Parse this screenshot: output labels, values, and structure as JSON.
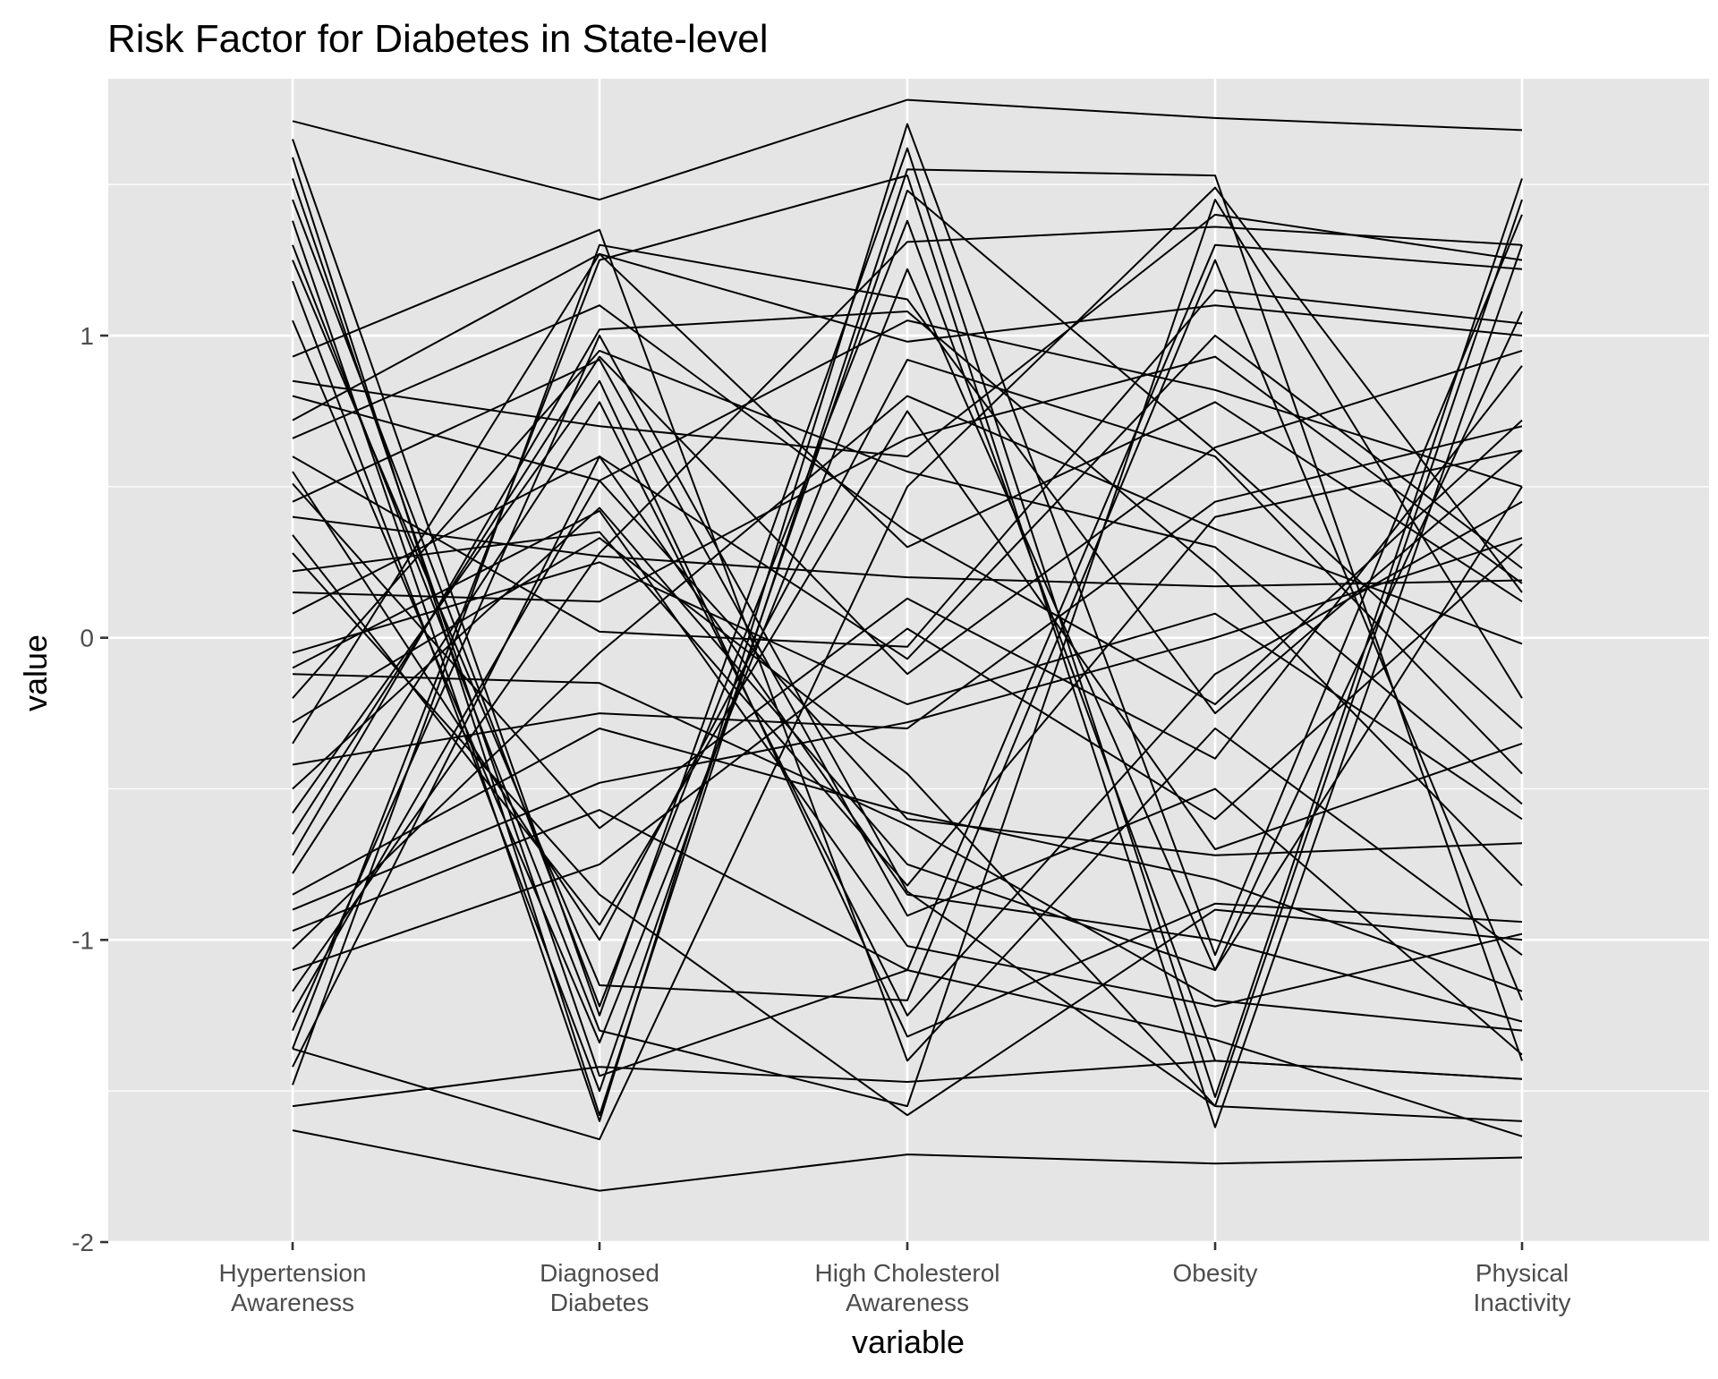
{
  "chart_data": {
    "type": "line",
    "subtype": "parallel-coordinates",
    "title": "Risk Factor for Diabetes in State-level",
    "xlabel": "variable",
    "ylabel": "value",
    "ylim": [
      -2.0,
      1.85
    ],
    "y_ticks": [
      -2,
      -1,
      0,
      1
    ],
    "y_tick_labels": [
      "-2",
      "-1",
      "0",
      "1"
    ],
    "categories": [
      [
        "Hypertension",
        "Awareness"
      ],
      [
        "Diagnosed",
        "Diabetes"
      ],
      [
        "High Cholesterol",
        "Awareness"
      ],
      [
        "Obesity"
      ],
      [
        "Physical",
        "Inactivity"
      ]
    ],
    "grid": true,
    "panel_background": "#e5e5e5",
    "line_color": "#000000",
    "series": [
      {
        "values": [
          1.71,
          1.45,
          1.78,
          1.72,
          1.68
        ]
      },
      {
        "values": [
          -1.63,
          -1.83,
          -1.71,
          -1.74,
          -1.72
        ]
      },
      {
        "values": [
          1.65,
          -1.25,
          1.62,
          -1.52,
          1.52
        ]
      },
      {
        "values": [
          1.59,
          -1.58,
          1.55,
          1.53,
          -1.4
        ]
      },
      {
        "values": [
          1.52,
          -1.45,
          -1.1,
          1.3,
          1.22
        ]
      },
      {
        "values": [
          1.45,
          -1.22,
          1.38,
          -1.4,
          -1.46
        ]
      },
      {
        "values": [
          1.38,
          -1.6,
          1.7,
          -1.05,
          1.4
        ]
      },
      {
        "values": [
          1.3,
          -1.3,
          -1.55,
          1.45,
          -0.2
        ]
      },
      {
        "values": [
          1.25,
          -1.15,
          -1.2,
          1.25,
          -1.2
        ]
      },
      {
        "values": [
          1.18,
          -1.5,
          1.48,
          0.62,
          -0.3
        ]
      },
      {
        "values": [
          1.05,
          -1.34,
          1.22,
          -1.1,
          1.08
        ]
      },
      {
        "values": [
          0.93,
          1.35,
          -1.4,
          -0.3,
          -1.05
        ]
      },
      {
        "values": [
          0.85,
          0.7,
          0.6,
          1.4,
          1.25
        ]
      },
      {
        "values": [
          0.8,
          0.52,
          1.05,
          0.82,
          0.5
        ]
      },
      {
        "values": [
          0.72,
          1.27,
          0.98,
          1.1,
          1.0
        ]
      },
      {
        "values": [
          0.66,
          1.1,
          0.35,
          -0.22,
          0.72
        ]
      },
      {
        "values": [
          0.6,
          0.02,
          -0.03,
          1.15,
          1.04
        ]
      },
      {
        "values": [
          0.55,
          -1.0,
          0.92,
          0.6,
          -0.45
        ]
      },
      {
        "values": [
          0.45,
          0.92,
          -0.92,
          -0.5,
          -1.38
        ]
      },
      {
        "values": [
          0.4,
          0.27,
          0.2,
          0.17,
          0.19
        ]
      },
      {
        "values": [
          0.34,
          -0.95,
          0.75,
          -0.7,
          -0.35
        ]
      },
      {
        "values": [
          0.28,
          -0.85,
          -1.58,
          -0.9,
          -1.0
        ]
      },
      {
        "values": [
          0.22,
          0.35,
          -0.82,
          0.4,
          0.62
        ]
      },
      {
        "values": [
          0.15,
          0.12,
          0.66,
          0.93,
          0.18
        ]
      },
      {
        "values": [
          0.08,
          0.6,
          -0.07,
          1.0,
          0.23
        ]
      },
      {
        "values": [
          -0.05,
          0.25,
          -0.22,
          0.08,
          -0.6
        ]
      },
      {
        "values": [
          -0.12,
          -0.15,
          -0.62,
          -1.2,
          -1.3
        ]
      },
      {
        "values": [
          -0.2,
          0.95,
          0.55,
          0.3,
          -0.55
        ]
      },
      {
        "values": [
          -0.28,
          0.33,
          -0.45,
          -1.55,
          -1.6
        ]
      },
      {
        "values": [
          -0.35,
          1.27,
          0.3,
          0.78,
          0.12
        ]
      },
      {
        "values": [
          -0.42,
          -0.25,
          -0.3,
          0.45,
          0.7
        ]
      },
      {
        "values": [
          -0.5,
          0.43,
          -0.75,
          -1.1,
          0.5
        ]
      },
      {
        "values": [
          -0.58,
          0.85,
          -1.32,
          -0.88,
          -0.94
        ]
      },
      {
        "values": [
          -0.65,
          0.93,
          -0.12,
          0.63,
          0.95
        ]
      },
      {
        "values": [
          -0.72,
          1.02,
          1.08,
          0.22,
          -0.82
        ]
      },
      {
        "values": [
          -0.78,
          0.78,
          -1.25,
          -0.12,
          0.45
        ]
      },
      {
        "values": [
          -0.85,
          -0.3,
          -0.58,
          -0.8,
          -1.17
        ]
      },
      {
        "values": [
          -0.9,
          -0.48,
          -0.28,
          0.0,
          0.33
        ]
      },
      {
        "values": [
          -0.97,
          -0.57,
          -1.1,
          -1.33,
          -1.65
        ]
      },
      {
        "values": [
          -1.03,
          -0.05,
          0.8,
          0.36,
          -0.02
        ]
      },
      {
        "values": [
          -1.1,
          -0.75,
          0.03,
          -0.6,
          0.31
        ]
      },
      {
        "values": [
          -1.17,
          0.28,
          1.31,
          1.36,
          1.3
        ]
      },
      {
        "values": [
          -1.24,
          0.52,
          -0.6,
          -0.72,
          -0.68
        ]
      },
      {
        "values": [
          -1.3,
          1.0,
          -0.84,
          -1.55,
          1.45
        ]
      },
      {
        "values": [
          -1.36,
          1.25,
          1.53,
          -1.62,
          1.3
        ]
      },
      {
        "values": [
          -1.42,
          0.6,
          -0.85,
          -1.0,
          -1.27
        ]
      },
      {
        "values": [
          -1.48,
          1.3,
          1.12,
          -0.25,
          0.62
        ]
      },
      {
        "values": [
          -1.55,
          -1.42,
          -1.47,
          -1.4,
          -1.46
        ]
      },
      {
        "values": [
          -1.36,
          -1.66,
          0.5,
          1.49,
          0.15
        ]
      },
      {
        "values": [
          -0.1,
          0.42,
          -1.02,
          -1.22,
          -0.98
        ]
      },
      {
        "values": [
          0.51,
          -0.63,
          0.13,
          -0.4,
          0.9
        ]
      }
    ]
  }
}
